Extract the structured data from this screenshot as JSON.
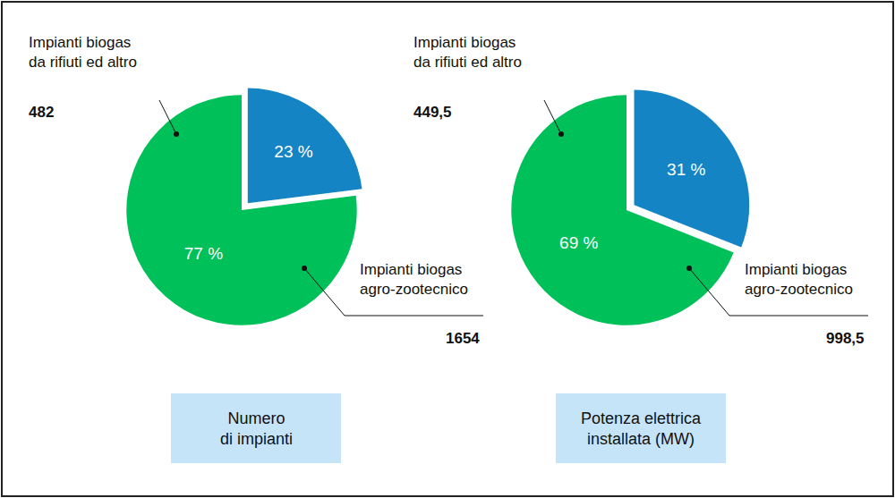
{
  "chart_data": [
    {
      "type": "pie",
      "title": "Numero\ndi impianti",
      "categories": [
        "Impianti biogas\nda rifiuti ed altro",
        "Impianti biogas\nagro-zootecnico"
      ],
      "percents": [
        23,
        77
      ],
      "percent_labels": [
        "23 %",
        "77 %"
      ],
      "values": [
        482,
        1654
      ],
      "value_labels": [
        "482",
        "1654"
      ],
      "colors": [
        "#1484c4",
        "#00c05a"
      ],
      "data_labels": true
    },
    {
      "type": "pie",
      "title": "Potenza elettrica\ninstallata (MW)",
      "categories": [
        "Impianti biogas\nda rifiuti ed altro",
        "Impianti biogas\nagro-zootecnico"
      ],
      "percents": [
        31,
        69
      ],
      "percent_labels": [
        "31 %",
        "69 %"
      ],
      "values": [
        449.5,
        998.5
      ],
      "value_labels": [
        "449,5",
        "998,5"
      ],
      "colors": [
        "#1484c4",
        "#00c05a"
      ],
      "data_labels": true
    }
  ]
}
